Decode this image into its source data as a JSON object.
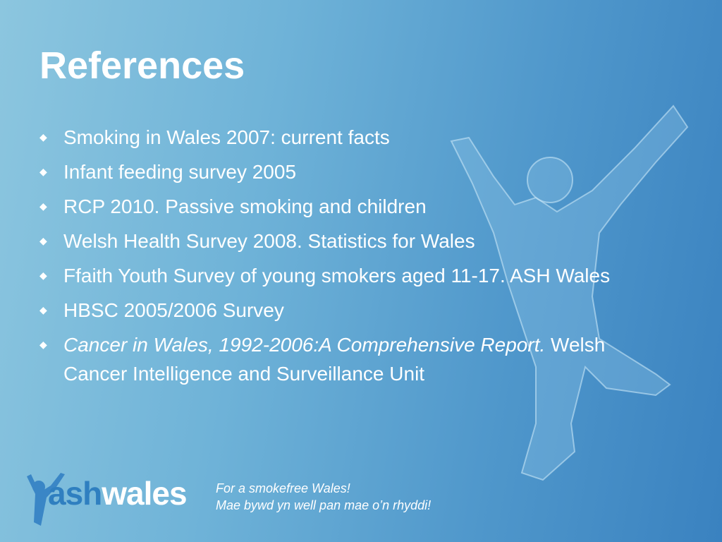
{
  "header": {
    "title": "References"
  },
  "references": {
    "items": [
      "Smoking in Wales 2007: current facts",
      "Infant feeding survey 2005",
      "RCP 2010. Passive smoking and children",
      "Welsh Health Survey 2008. Statistics for Wales",
      "Ffaith Youth Survey of  young smokers aged 11-17. ASH Wales",
      "HBSC 2005/2006 Survey"
    ],
    "last_item": {
      "italic": "Cancer in Wales, 1992-2006:A Comprehensive Report.",
      "text": "Welsh Cancer Intelligence and Surveillance Unit"
    }
  },
  "footer": {
    "logo_ash": "ash",
    "logo_wales": "wales",
    "tagline_1": "For a smokefree Wales!",
    "tagline_2": "Mae bywd yn well pan mae o’n rhyddi!"
  }
}
